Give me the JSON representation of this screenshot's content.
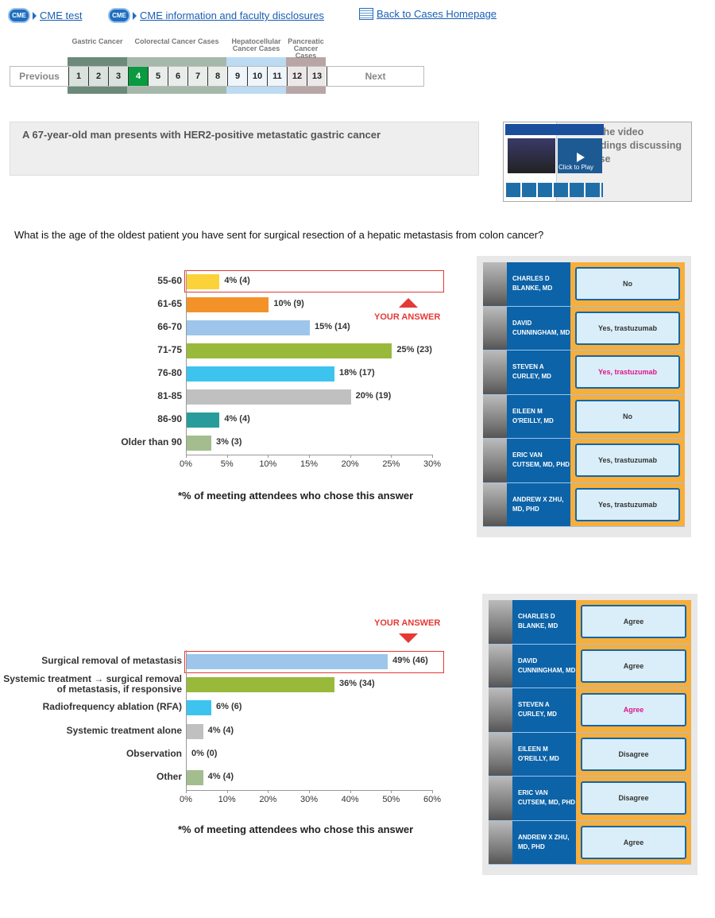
{
  "top_links": [
    {
      "label": "CME test",
      "icon": "cme-icon"
    },
    {
      "label": "CME information and faculty disclosures",
      "icon": "cme-icon"
    },
    {
      "label": "Back to Cases Homepage",
      "icon": "document-icon"
    }
  ],
  "cme_badge": "CME",
  "pager": {
    "previous": "Previous",
    "next": "Next",
    "current": "4",
    "groups": [
      {
        "label": "Gastric Cancer",
        "color": "#6b8a79",
        "pages": [
          "1",
          "2",
          "3"
        ]
      },
      {
        "label": "Colorectal Cancer Cases",
        "color": "#a5b8aa",
        "pages": [
          "4",
          "5",
          "6",
          "7",
          "8"
        ]
      },
      {
        "label": "Hepatocellular Cancer Cases",
        "color": "#bcdaf2",
        "pages": [
          "9",
          "10",
          "11"
        ]
      },
      {
        "label": "Pancreatic Cancer Cases",
        "color": "#b9a5a5",
        "pages": [
          "12",
          "13"
        ]
      }
    ]
  },
  "case_title": "A 67-year-old man presents with HER2-positive metastatic gastric cancer",
  "video": {
    "play_label": "Click to Play",
    "text": "Watch the video proceedings discussing this case"
  },
  "question": "What is the age of the oldest patient you have sent for surgical resection of a hepatic metastasis from colon cancer?",
  "your_answer": "YOUR ANSWER",
  "footnote": "*% of meeting attendees who chose this answer",
  "chart_data": [
    {
      "type": "bar",
      "orientation": "horizontal",
      "categories": [
        "55-60",
        "61-65",
        "66-70",
        "71-75",
        "76-80",
        "81-85",
        "86-90",
        "Older than 90"
      ],
      "values": [
        4,
        10,
        15,
        25,
        18,
        20,
        4,
        3
      ],
      "counts": [
        4,
        9,
        14,
        23,
        17,
        19,
        4,
        3
      ],
      "labels": [
        "4% (4)",
        "10% (9)",
        "15% (14)",
        "25% (23)",
        "18% (17)",
        "20% (19)",
        "4% (4)",
        "3% (3)"
      ],
      "colors": [
        "#fcd23a",
        "#f4922a",
        "#9dc6ea",
        "#99b93b",
        "#3cc4ef",
        "#c0c0c0",
        "#279c9a",
        "#a3bd8f"
      ],
      "xlim": [
        0,
        30
      ],
      "xticks": [
        "0%",
        "5%",
        "10%",
        "15%",
        "20%",
        "25%",
        "30%"
      ],
      "highlight": 0
    },
    {
      "type": "bar",
      "orientation": "horizontal",
      "categories": [
        "Surgical removal of metastasis",
        "Systemic treatment → surgical removal of metastasis, if responsive",
        "Radiofrequency ablation (RFA)",
        "Systemic treatment alone",
        "Observation",
        "Other"
      ],
      "values": [
        49,
        36,
        6,
        4,
        0,
        4
      ],
      "counts": [
        46,
        34,
        6,
        4,
        0,
        4
      ],
      "labels": [
        "49% (46)",
        "36% (34)",
        "6% (6)",
        "4% (4)",
        "0% (0)",
        "4% (4)"
      ],
      "colors": [
        "#9dc6ea",
        "#99b93b",
        "#3cc4ef",
        "#c0c0c0",
        "#c0c0c0",
        "#a3bd8f"
      ],
      "xlim": [
        0,
        60
      ],
      "xticks": [
        "0%",
        "10%",
        "20%",
        "30%",
        "40%",
        "50%",
        "60%"
      ],
      "highlight": 0
    }
  ],
  "panels": [
    {
      "rows": [
        {
          "name": "CHARLES D BLANKE, MD",
          "answer": "No"
        },
        {
          "name": "DAVID CUNNINGHAM, MD",
          "answer": "Yes, trastuzumab"
        },
        {
          "name": "STEVEN A CURLEY, MD",
          "answer": "Yes, trastuzumab",
          "highlight": true
        },
        {
          "name": "EILEEN M O'REILLY, MD",
          "answer": "No"
        },
        {
          "name": "ERIC VAN CUTSEM, MD, PHD",
          "answer": "Yes, trastuzumab"
        },
        {
          "name": "ANDREW X ZHU, MD, PHD",
          "answer": "Yes, trastuzumab"
        }
      ]
    },
    {
      "rows": [
        {
          "name": "CHARLES D BLANKE, MD",
          "answer": "Agree"
        },
        {
          "name": "DAVID CUNNINGHAM, MD",
          "answer": "Agree"
        },
        {
          "name": "STEVEN A CURLEY, MD",
          "answer": "Agree",
          "highlight": true
        },
        {
          "name": "EILEEN M O'REILLY, MD",
          "answer": "Disagree"
        },
        {
          "name": "ERIC VAN CUTSEM, MD, PHD",
          "answer": "Disagree"
        },
        {
          "name": "ANDREW X ZHU, MD, PHD",
          "answer": "Agree"
        }
      ]
    }
  ]
}
